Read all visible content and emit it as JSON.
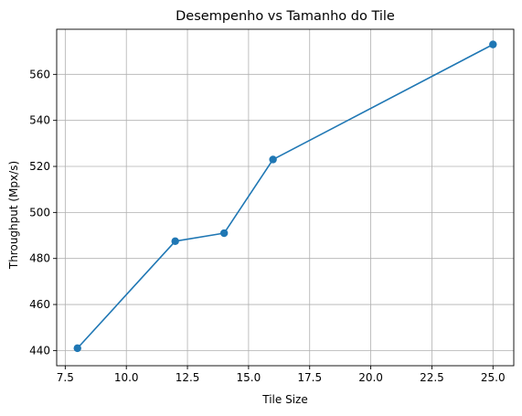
{
  "chart_data": {
    "type": "line",
    "title": "Desempenho vs Tamanho do Tile",
    "xlabel": "Tile Size",
    "ylabel": "Throughput (Mpx/s)",
    "x": [
      8,
      12,
      14,
      16,
      25
    ],
    "series": [
      {
        "values": [
          441,
          487.5,
          491,
          523,
          573
        ],
        "color": "#1f77b4",
        "marker": "circle"
      }
    ],
    "xlim": [
      7.15,
      25.85
    ],
    "ylim": [
      433.4,
      579.6
    ],
    "xticks": [
      7.5,
      10.0,
      12.5,
      15.0,
      17.5,
      20.0,
      22.5,
      25.0
    ],
    "xtick_labels": [
      "7.5",
      "10.0",
      "12.5",
      "15.0",
      "17.5",
      "20.0",
      "22.5",
      "25.0"
    ],
    "yticks": [
      440,
      460,
      480,
      500,
      520,
      540,
      560
    ],
    "ytick_labels": [
      "440",
      "460",
      "480",
      "500",
      "520",
      "540",
      "560"
    ],
    "grid": true,
    "grid_color": "#b0b0b0"
  }
}
